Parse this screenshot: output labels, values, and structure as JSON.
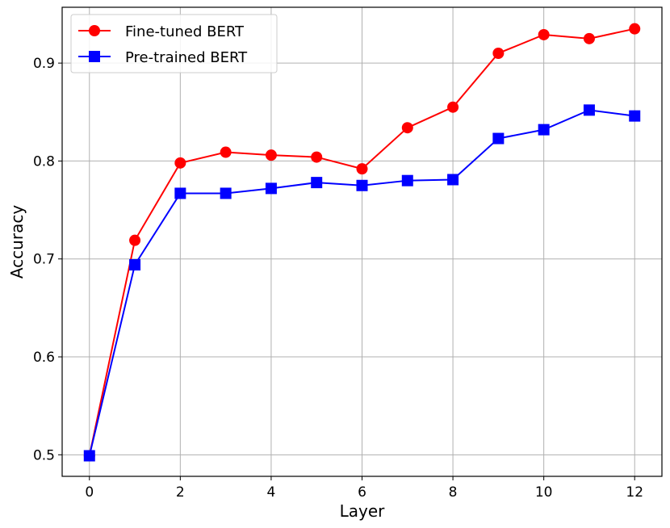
{
  "chart_data": {
    "type": "line",
    "xlabel": "Layer",
    "ylabel": "Accuracy",
    "x": [
      0,
      1,
      2,
      3,
      4,
      5,
      6,
      7,
      8,
      9,
      10,
      11,
      12
    ],
    "xlim": [
      -0.6,
      12.6
    ],
    "ylim": [
      0.478,
      0.957
    ],
    "xticks": [
      "0",
      "2",
      "4",
      "6",
      "8",
      "10",
      "12"
    ],
    "yticks": [
      "0.5",
      "0.6",
      "0.7",
      "0.8",
      "0.9"
    ],
    "grid": true,
    "legend_position": "top-left",
    "series": [
      {
        "name": "Fine-tuned BERT",
        "color": "#ff0000",
        "marker": "circle",
        "values": [
          0.499,
          0.719,
          0.798,
          0.809,
          0.806,
          0.804,
          0.792,
          0.834,
          0.855,
          0.91,
          0.929,
          0.925,
          0.935
        ]
      },
      {
        "name": "Pre-trained BERT",
        "color": "#0000ff",
        "marker": "square",
        "values": [
          0.499,
          0.694,
          0.767,
          0.767,
          0.772,
          0.778,
          0.775,
          0.78,
          0.781,
          0.823,
          0.832,
          0.852,
          0.846
        ]
      }
    ]
  }
}
